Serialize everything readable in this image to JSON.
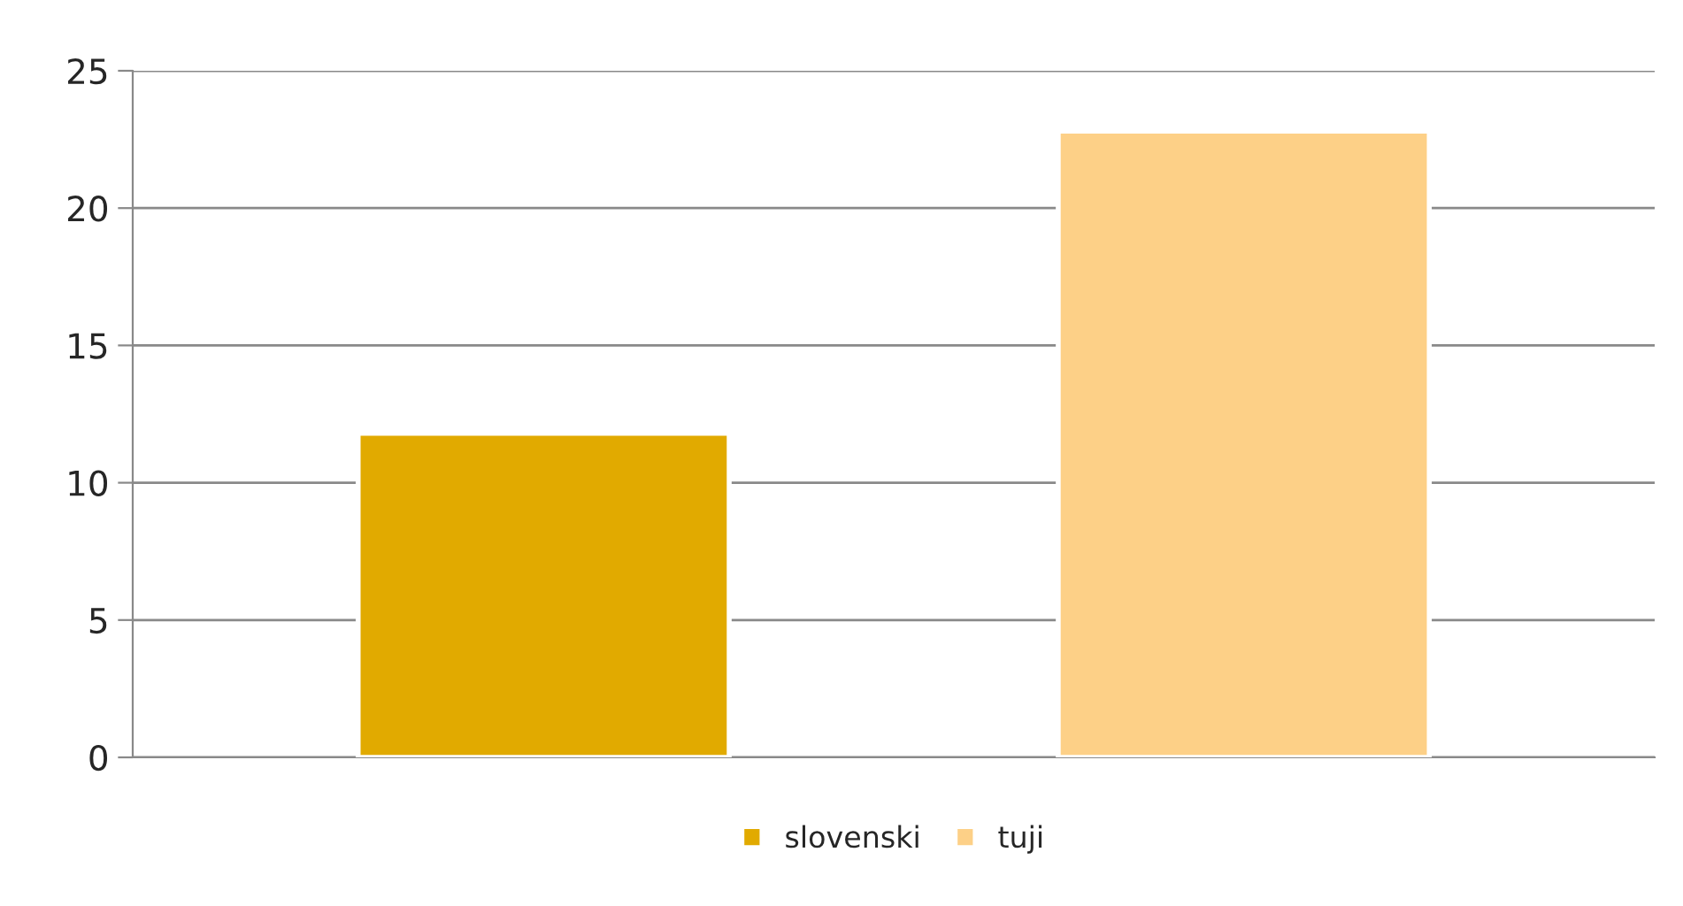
{
  "chart_data": {
    "type": "bar",
    "categories": [
      null
    ],
    "series": [
      {
        "name": "slovenski",
        "color": "#e1aa00",
        "values": [
          11.8
        ]
      },
      {
        "name": "tuji",
        "color": "#fdd087",
        "values": [
          22.8
        ]
      }
    ],
    "ylim": [
      0,
      25
    ],
    "yticks": [
      0,
      5,
      10,
      15,
      20,
      25
    ],
    "grid": "y",
    "legend": "bottom",
    "tick_labels": "y"
  }
}
